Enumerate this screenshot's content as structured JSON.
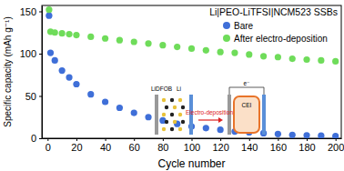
{
  "chart_data": {
    "type": "scatter",
    "title": "Li|PEO-LiTFSI|NCM523 SSBs",
    "x_label": "Cycle number",
    "y_label": "Specific capacity (mAh g⁻¹)",
    "x": [
      1,
      2,
      5,
      10,
      15,
      20,
      30,
      40,
      50,
      60,
      70,
      80,
      90,
      100,
      110,
      120,
      130,
      140,
      150,
      160,
      170,
      180,
      190,
      200
    ],
    "series": [
      {
        "name": "Bare",
        "color": "#3f6fd8",
        "marker": "circle",
        "values": [
          145,
          101,
          92,
          80,
          72,
          64,
          52,
          43,
          36,
          30,
          25,
          21,
          17,
          14,
          12,
          10,
          8,
          7,
          6,
          5,
          4,
          3.5,
          3,
          2.5
        ]
      },
      {
        "name": "After electro-deposition",
        "color": "#6fdc5a",
        "marker": "circle",
        "values": [
          152,
          126,
          125,
          124,
          123,
          122,
          120,
          118,
          116,
          114,
          112,
          110,
          108,
          106,
          104,
          102,
          101,
          99,
          97,
          96,
          94,
          93,
          92,
          91
        ]
      }
    ],
    "xlim": [
      -4,
      204
    ],
    "xticks": [
      0,
      20,
      40,
      60,
      80,
      100,
      120,
      140,
      160,
      180,
      200
    ],
    "ylim": [
      0,
      157
    ],
    "yticks": [
      0,
      50,
      100,
      150
    ],
    "grid": false,
    "legend": "upper right",
    "annotations": [
      "LiDFOB",
      "Li",
      "Electro-deposition",
      "CEI",
      "e⁻"
    ]
  }
}
